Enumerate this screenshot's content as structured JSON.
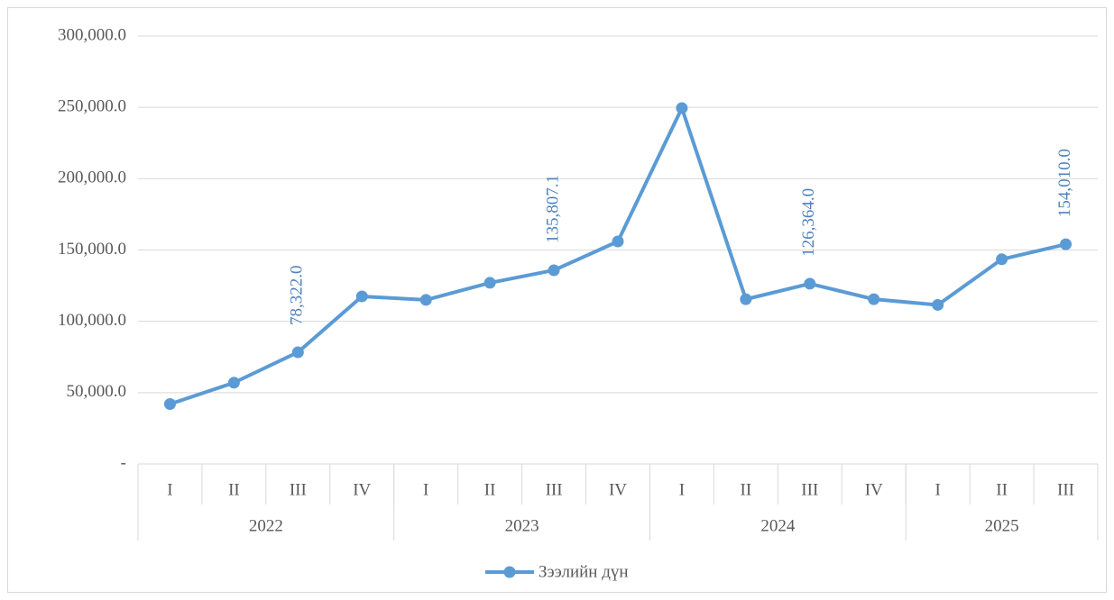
{
  "chart_data": {
    "type": "line",
    "categories": [
      "I",
      "II",
      "III",
      "IV",
      "I",
      "II",
      "III",
      "IV",
      "I",
      "II",
      "III",
      "IV",
      "I",
      "II",
      "III"
    ],
    "category_groups": [
      {
        "name": "2022",
        "count": 4
      },
      {
        "name": "2023",
        "count": 4
      },
      {
        "name": "2024",
        "count": 4
      },
      {
        "name": "2025",
        "count": 3
      }
    ],
    "series": [
      {
        "name": "Зээлийн дүн",
        "color": "#5b9bd5",
        "values": [
          42000,
          57000,
          78322.0,
          117500,
          115000,
          127000,
          135807.1,
          156000,
          249500,
          115500,
          126364.0,
          115500,
          111500,
          143500,
          154010.0
        ],
        "value_labels": [
          null,
          null,
          "78,322.0",
          null,
          null,
          null,
          "135,807.1",
          null,
          null,
          null,
          "126,364.0",
          null,
          null,
          null,
          "154,010.0"
        ]
      }
    ],
    "ylim": [
      0,
      300000
    ],
    "yticks": [
      {
        "value": 0,
        "label": "-"
      },
      {
        "value": 50000,
        "label": "50,000.0"
      },
      {
        "value": 100000,
        "label": "100,000.0"
      },
      {
        "value": 150000,
        "label": "150,000.0"
      },
      {
        "value": 200000,
        "label": "200,000.0"
      },
      {
        "value": 250000,
        "label": "250,000.0"
      },
      {
        "value": 300000,
        "label": "300,000.0"
      }
    ],
    "grid": true,
    "legend": "bottom"
  }
}
